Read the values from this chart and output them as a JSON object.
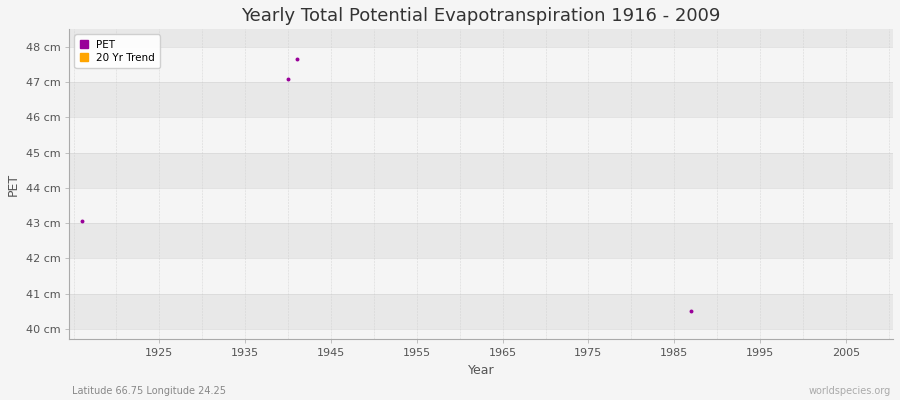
{
  "title": "Yearly Total Potential Evapotranspiration 1916 - 2009",
  "xlabel": "Year",
  "ylabel": "PET",
  "xlim": [
    1914.5,
    2010.5
  ],
  "ylim": [
    39.7,
    48.5
  ],
  "yticks": [
    40,
    41,
    42,
    43,
    44,
    45,
    46,
    47,
    48
  ],
  "ytick_labels": [
    "40 cm",
    "41 cm",
    "42 cm",
    "43 cm",
    "44 cm",
    "45 cm",
    "46 cm",
    "47 cm",
    "48 cm"
  ],
  "xticks": [
    1925,
    1935,
    1945,
    1955,
    1965,
    1975,
    1985,
    1995,
    2005
  ],
  "pet_years": [
    1916,
    1940,
    1941,
    1987
  ],
  "pet_values": [
    43.05,
    47.1,
    47.65,
    40.5
  ],
  "pet_color": "#990099",
  "trend_color": "#ffa500",
  "fig_bg_color": "#f5f5f5",
  "plot_bg_color": "#f5f5f5",
  "band_color": "#e8e8e8",
  "grid_v_color": "#cccccc",
  "grid_h_color": "#cccccc",
  "title_fontsize": 13,
  "axis_label_fontsize": 9,
  "tick_fontsize": 8,
  "subtitle_left": "Latitude 66.75 Longitude 24.25",
  "subtitle_right": "worldspecies.org",
  "band_ranges": [
    [
      40,
      41
    ],
    [
      42,
      43
    ],
    [
      44,
      45
    ],
    [
      46,
      47
    ],
    [
      48,
      49
    ]
  ],
  "vgrid_step": 5,
  "vgrid_start": 1915,
  "vgrid_end": 2011
}
